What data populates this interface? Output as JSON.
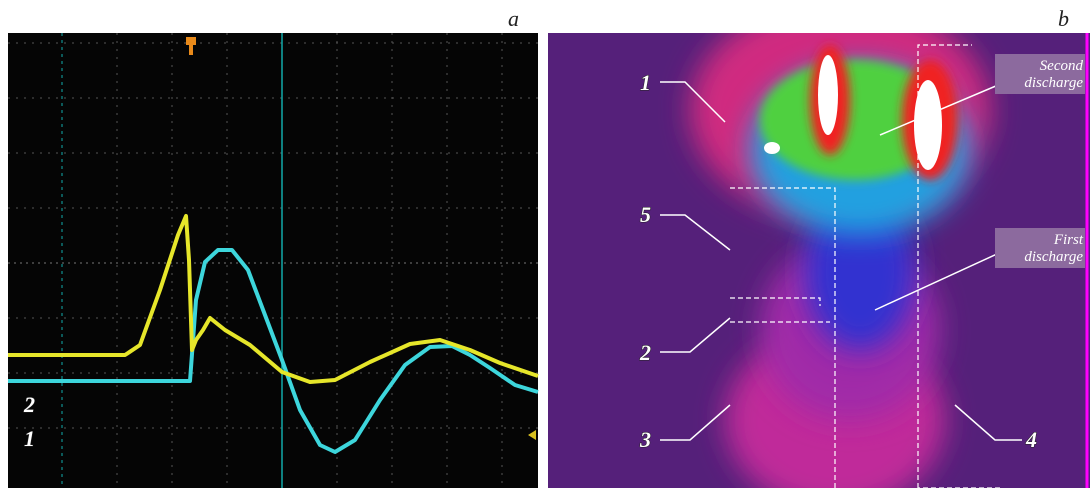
{
  "panel_a": {
    "label": "a",
    "trace_labels": [
      "1",
      "2"
    ]
  },
  "panel_b": {
    "label": "b",
    "region_labels": [
      "1",
      "5",
      "2",
      "3",
      "4"
    ],
    "second_discharge": [
      "Second",
      "discharge"
    ],
    "first_discharge": [
      "First",
      "discharge"
    ]
  }
}
